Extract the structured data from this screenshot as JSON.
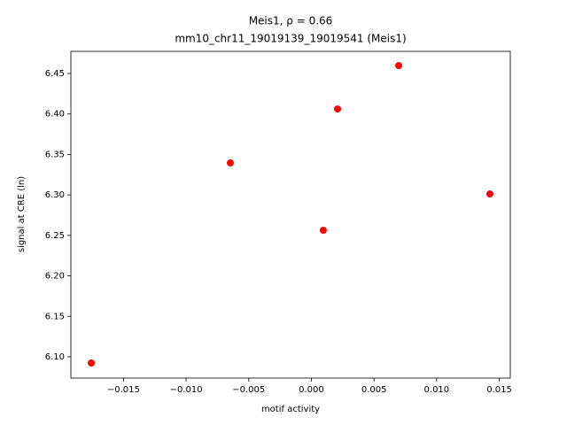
{
  "chart_data": {
    "type": "scatter",
    "title": "Meis1, ρ = 0.66",
    "subtitle": "mm10_chr11_19019139_19019541 (Meis1)",
    "x_label": "motif activity",
    "y_label": "signal at CRE (ln)",
    "color": "#ff0000",
    "x": [
      -0.01757,
      -0.00647,
      0.00095,
      0.00209,
      0.00697,
      0.01425
    ],
    "y": [
      6.0923,
      6.3395,
      6.2563,
      6.4062,
      6.4598,
      6.3012
    ],
    "xlim": [
      -0.0192,
      0.01588
    ],
    "ylim": [
      6.0737,
      6.4774
    ],
    "xticks": [
      {
        "value": -0.015,
        "label": "−0.015"
      },
      {
        "value": -0.01,
        "label": "−0.010"
      },
      {
        "value": -0.005,
        "label": "−0.005"
      },
      {
        "value": 0,
        "label": "0.000"
      },
      0.005,
      {
        "value": 0.01,
        "label": "0.010"
      },
      0.015
    ],
    "yticks": [
      {
        "value": 6.1,
        "label": "6.10"
      },
      6.15,
      {
        "value": 6.2,
        "label": "6.20"
      },
      6.25,
      {
        "value": 6.3,
        "label": "6.30"
      },
      6.35,
      {
        "value": 6.4,
        "label": "6.40"
      },
      6.45
    ]
  }
}
